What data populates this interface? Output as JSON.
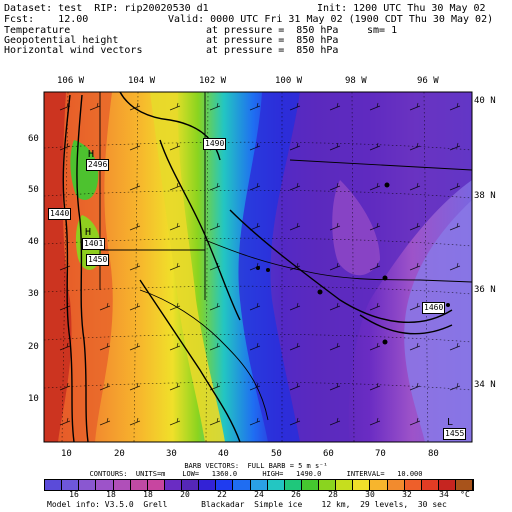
{
  "header": {
    "dataset_line": "Dataset: test  RIP: rip20020530 d1",
    "init_line": "Init: 1200 UTC Thu 30 May 02",
    "fcst_line": "Fcst:    12.00",
    "valid_line": "Valid: 0000 UTC Fri 31 May 02 (1900 CDT Thu 30 May 02)",
    "fields": [
      {
        "name": "Temperature",
        "level": "at pressure =  850 hPa",
        "extra": "sm= 1"
      },
      {
        "name": "Geopotential height",
        "level": "at pressure =  850 hPa",
        "extra": ""
      },
      {
        "name": "Horizontal wind vectors",
        "level": "at pressure =  850 hPa",
        "extra": ""
      }
    ]
  },
  "map": {
    "top_lon_labels": [
      "106 W",
      "104 W",
      "102 W",
      "100 W",
      "98 W",
      "96 W"
    ],
    "right_lat_labels": [
      "40 N",
      "38 N",
      "36 N",
      "34 N"
    ],
    "left_y_ticks": [
      "60",
      "50",
      "40",
      "30",
      "20",
      "10"
    ],
    "bottom_x_ticks": [
      "10",
      "20",
      "30",
      "40",
      "50",
      "60",
      "70",
      "80"
    ],
    "height_contour_labels": [
      "1450",
      "1440",
      "1450",
      "1460",
      "1450",
      "1460",
      "1480",
      "1480",
      "1490"
    ],
    "high_center": {
      "symbol": "H",
      "value": "2496"
    },
    "high_center_2": {
      "symbol": "H",
      "value": "1401"
    },
    "low_center": {
      "symbol": "L",
      "value": "1455"
    }
  },
  "info": {
    "barb_line": "BARB VECTORS:  FULL BARB = 5 m s⁻¹",
    "contour_line": "CONTOURS:  UNITS=m    LOW=   1360.0      HIGH=   1490.0      INTERVAL=   10.000"
  },
  "colorbar": {
    "labels": [
      "16",
      "18",
      "18",
      "20",
      "22",
      "24",
      "26",
      "28",
      "30",
      "32",
      "34"
    ],
    "unit": "°C",
    "colors": [
      "#5b4bd9",
      "#6e57db",
      "#8a57d1",
      "#9d53c9",
      "#b04fb9",
      "#c04aa4",
      "#c845a0",
      "#6a2cc3",
      "#5527b8",
      "#3322d6",
      "#1f3cf0",
      "#1f6df2",
      "#2aa0e5",
      "#23c6c2",
      "#1fc77b",
      "#45c72f",
      "#8ad41f",
      "#c6de1e",
      "#f0e02a",
      "#f7b52d",
      "#f28b2e",
      "#ee5f2a",
      "#e23c24",
      "#c62520",
      "#a8531b"
    ]
  },
  "footer": {
    "model_info": "Model info: V3.5.0  Grell       Blackadar  Simple ice    12 km,  29 levels,  30 sec"
  }
}
